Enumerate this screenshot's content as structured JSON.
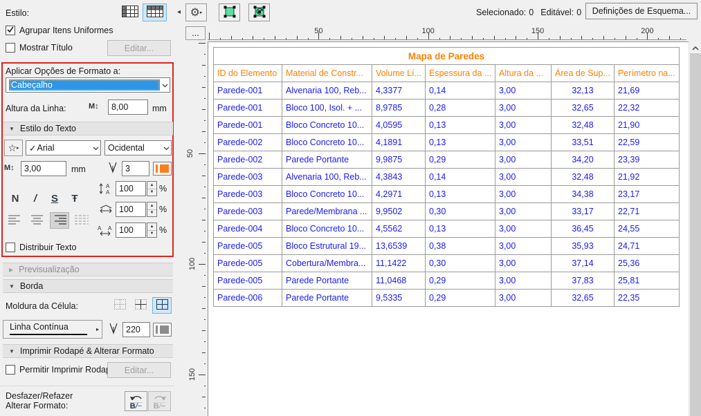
{
  "colors": {
    "accent_blue": "#2e96e8",
    "selection_bg": "#cfe7f9",
    "selection_border": "#7ab2e0",
    "header_orange": "#ff8000",
    "data_blue": "#1a1aff",
    "pen_orange": "#ff7d1a",
    "pen_gray": "#8c8c8c",
    "tool_green": "#5ae0a0",
    "highlight_red": "#e0241e"
  },
  "icons": {
    "gear": "⚙",
    "star": "☆",
    "menu_arrow": "▸",
    "collapse_left": "◂",
    "section_expanded": "▼",
    "section_collapsed": "▶",
    "row_height_m": "M",
    "updown_arrow": "↕",
    "spin_up": "▲",
    "spin_down": "▼"
  },
  "sidebar": {
    "estilo_label": "Estilo:",
    "agrupar_label": "Agrupar Itens Uniformes",
    "mostrar_titulo_label": "Mostrar Título",
    "editar_button": "Editar...",
    "aplicar_label": "Aplicar Opções de Formato a:",
    "aplicar_value": "Cabeçalho",
    "altura_linha_label": "Altura da Linha:",
    "altura_linha_value": "8,00",
    "altura_linha_unit": "mm",
    "estilo_texto": {
      "title": "Estilo do Texto",
      "font_check": "✓",
      "font_name": "Arial",
      "script_name": "Ocidental",
      "size_value": "3,00",
      "size_unit": "mm",
      "pen_value": "3",
      "bold_glyph": "N",
      "italic_glyph": "/",
      "underline_glyph": "S",
      "strike_glyph": "Ŧ",
      "line_spacing_value": "100",
      "width_factor_value": "100",
      "spacing_factor_value": "100",
      "percent": "%",
      "distribuir_label": "Distribuir Texto"
    },
    "previsualizacao_title": "Previsualização",
    "borda": {
      "title": "Borda",
      "moldura_label": "Moldura da Célula:",
      "line_type_value": "Linha Contínua",
      "pen_value": "220"
    },
    "rodape": {
      "title": "Imprimir Rodapé & Alterar Formato",
      "permitir_label": "Permitir Imprimir Rodapé",
      "editar_button": "Editar...",
      "undo_label_line1": "Desfazer/Refazer",
      "undo_label_line2": "Alterar Formato:",
      "undo_b": "B",
      "undo_slash": "/",
      "undo_dash": "−"
    }
  },
  "toolbar": {
    "selecionado_label": "Selecionado:",
    "selecionado_value": "0",
    "editavel_label": "Editável:",
    "editavel_value": "0",
    "definicoes_button": "Definições de Esquema...",
    "more_button": "..."
  },
  "ruler": {
    "h_labels": [
      "50",
      "100",
      "150",
      "200"
    ],
    "v_labels": [
      "50",
      "100",
      "150"
    ]
  },
  "table": {
    "title": "Mapa de Paredes",
    "columns": [
      "ID do Elemento",
      "Material de Constr...",
      "Volume Lí...",
      "Espessura da ...",
      "Altura da ...",
      "Área de Sup...",
      "Perímetro na..."
    ],
    "rows": [
      [
        "Parede-001",
        "Alvenaria 100, Reb...",
        "4,3377",
        "0,14",
        "3,00",
        "32,13",
        "21,69"
      ],
      [
        "Parede-001",
        "Bloco 100, Isol. + ...",
        "8,9785",
        "0,28",
        "3,00",
        "32,65",
        "22,32"
      ],
      [
        "Parede-001",
        "Bloco Concreto 10...",
        "4,0595",
        "0,13",
        "3,00",
        "32,48",
        "21,90"
      ],
      [
        "Parede-002",
        "Bloco Concreto 10...",
        "4,1891",
        "0,13",
        "3,00",
        "33,51",
        "22,59"
      ],
      [
        "Parede-002",
        "Parede Portante",
        "9,9875",
        "0,29",
        "3,00",
        "34,20",
        "23,39"
      ],
      [
        "Parede-003",
        "Alvenaria 100, Reb...",
        "4,3843",
        "0,14",
        "3,00",
        "32,48",
        "21,92"
      ],
      [
        "Parede-003",
        "Bloco Concreto 10...",
        "4,2971",
        "0,13",
        "3,00",
        "34,38",
        "23,17"
      ],
      [
        "Parede-003",
        "Parede/Membrana ...",
        "9,9502",
        "0,30",
        "3,00",
        "33,17",
        "22,71"
      ],
      [
        "Parede-004",
        "Bloco Concreto 10...",
        "4,5562",
        "0,13",
        "3,00",
        "36,45",
        "24,55"
      ],
      [
        "Parede-005",
        "Bloco Estrutural 19...",
        "13,6539",
        "0,38",
        "3,00",
        "35,93",
        "24,71"
      ],
      [
        "Parede-005",
        "Cobertura/Membra...",
        "11,1422",
        "0,30",
        "3,00",
        "37,14",
        "25,36"
      ],
      [
        "Parede-005",
        "Parede Portante",
        "11,0468",
        "0,29",
        "3,00",
        "37,83",
        "25,81"
      ],
      [
        "Parede-006",
        "Parede Portante",
        "9,5335",
        "0,29",
        "3,00",
        "32,65",
        "22,35"
      ]
    ]
  }
}
